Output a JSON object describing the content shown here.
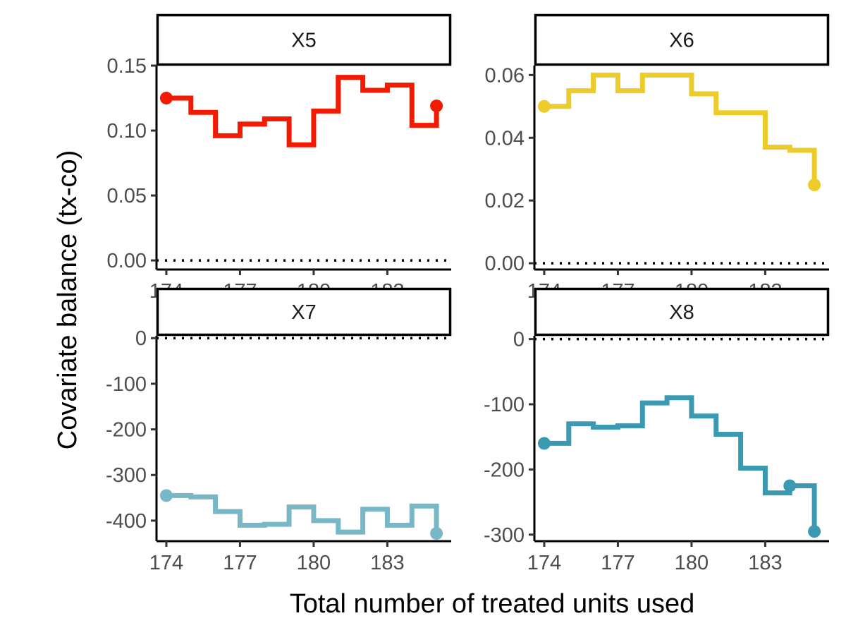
{
  "chart_data": {
    "type": "line",
    "ylabel": "Covariate balance (tx-co)",
    "xlabel": "Total number of treated units used",
    "xlim": [
      173.6,
      185.6
    ],
    "xticks": [
      174,
      177,
      180,
      183
    ],
    "xtick_labels": [
      "174",
      "177",
      "180",
      "183"
    ],
    "reference_line": {
      "y": 0,
      "style": "dotted"
    },
    "panels": [
      {
        "strip": "X5",
        "color": "#F21A00",
        "ylim": [
          -0.007,
          0.15
        ],
        "yticks": [
          0,
          0.05,
          0.1,
          0.15
        ],
        "ytick_labels": [
          "0.00",
          "0.05",
          "0.10",
          "0.15"
        ],
        "x": [
          174,
          175,
          176,
          177,
          178,
          179,
          180,
          181,
          182,
          183,
          184,
          185
        ],
        "y": [
          0.125,
          0.114,
          0.096,
          0.105,
          0.109,
          0.089,
          0.115,
          0.141,
          0.131,
          0.135,
          0.104,
          0.119
        ],
        "points": [
          [
            174,
            0.125
          ],
          [
            185,
            0.119
          ]
        ]
      },
      {
        "strip": "X6",
        "color": "#EBCC2A",
        "ylim": [
          -0.002,
          0.063
        ],
        "yticks": [
          0,
          0.02,
          0.04,
          0.06
        ],
        "ytick_labels": [
          "0.00",
          "0.02",
          "0.04",
          "0.06"
        ],
        "x": [
          174,
          175,
          176,
          177,
          178,
          179,
          180,
          181,
          182,
          183,
          184,
          185
        ],
        "y": [
          0.05,
          0.055,
          0.06,
          0.055,
          0.06,
          0.06,
          0.054,
          0.048,
          0.048,
          0.037,
          0.036,
          0.025
        ],
        "points": [
          [
            174,
            0.05
          ],
          [
            185,
            0.025
          ]
        ]
      },
      {
        "strip": "X7",
        "color": "#78B7C5",
        "ylim": [
          -445,
          5
        ],
        "yticks": [
          0,
          -100,
          -200,
          -300,
          -400
        ],
        "ytick_labels": [
          "0",
          "-100",
          "-200",
          "-300",
          "-400"
        ],
        "x": [
          174,
          175,
          176,
          177,
          178,
          179,
          180,
          181,
          182,
          183,
          184,
          185
        ],
        "y": [
          -345,
          -348,
          -380,
          -410,
          -408,
          -370,
          -400,
          -425,
          -375,
          -410,
          -368,
          -428
        ],
        "points": [
          [
            174,
            -345
          ],
          [
            185,
            -428
          ]
        ]
      },
      {
        "strip": "X8",
        "color": "#3B9AB2",
        "ylim": [
          -310,
          5
        ],
        "yticks": [
          0,
          -100,
          -200,
          -300
        ],
        "ytick_labels": [
          "0",
          "-100",
          "-200",
          "-300"
        ],
        "x": [
          174,
          175,
          176,
          177,
          178,
          179,
          180,
          181,
          182,
          183,
          184,
          185
        ],
        "y": [
          -160,
          -130,
          -135,
          -133,
          -98,
          -90,
          -118,
          -146,
          -198,
          -236,
          -225,
          -295
        ],
        "points": [
          [
            174,
            -160
          ],
          [
            184,
            -225
          ],
          [
            185,
            -295
          ]
        ]
      }
    ]
  }
}
